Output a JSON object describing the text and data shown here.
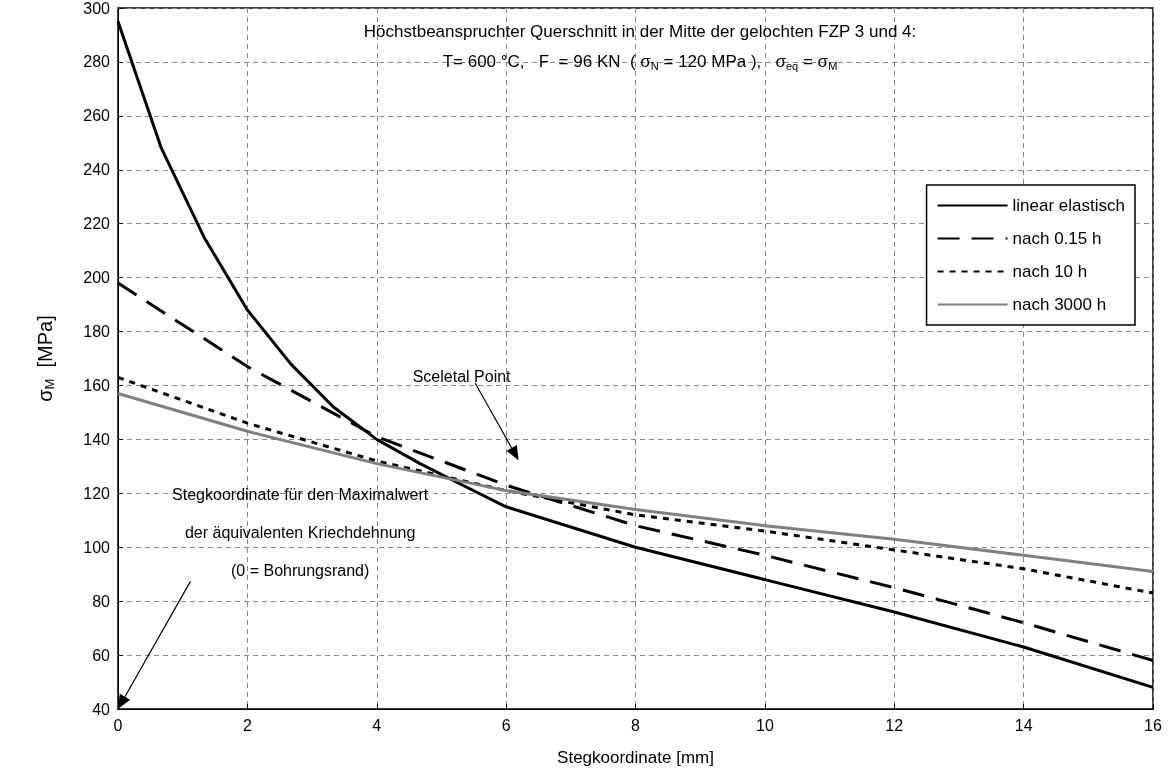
{
  "chart_data": {
    "type": "line",
    "title": "Höchstbeanspruchter Querschnitt in der Mitte der gelochten FZP 3 und 4:",
    "subtitle": "T= 600 °C,   F  = 96 KN  ( σ$_{N}$ = 120 MPa ),   σ$_{eq}$ = σ$_{M}$",
    "xlabel": "Stegkoordinate [mm]",
    "ylabel": "σ$_{M}$  [MPa]",
    "xlim": [
      0,
      16
    ],
    "xticks": [
      0,
      2,
      4,
      6,
      8,
      10,
      12,
      14,
      16
    ],
    "ylim": [
      40,
      300
    ],
    "yticks": [
      40,
      60,
      80,
      100,
      120,
      140,
      160,
      180,
      200,
      220,
      240,
      260,
      280,
      300
    ],
    "grid": true,
    "legend": "top right",
    "marker": "none",
    "series": [
      {
        "name": "linear elastisch",
        "color": "#000000",
        "line_style": "solid",
        "x": [
          0,
          0.67,
          1.33,
          2,
          2.67,
          3.33,
          4,
          4.67,
          5.33,
          6,
          8,
          10,
          12,
          14,
          16
        ],
        "values": [
          295,
          248,
          215,
          188,
          168,
          152,
          140,
          131,
          123,
          115,
          100,
          88,
          76,
          63,
          48
        ]
      },
      {
        "name": "nach 0.15 h",
        "color": "#000000",
        "line_style": "dashed",
        "x": [
          0,
          2,
          4,
          6,
          8,
          10,
          12,
          14,
          16
        ],
        "values": [
          198,
          167,
          141,
          123,
          108,
          97,
          85,
          72,
          58
        ]
      },
      {
        "name": "nach 10 h",
        "color": "#000000",
        "line_style": "dotted",
        "x": [
          0,
          2,
          4,
          6,
          8,
          10,
          12,
          14,
          16
        ],
        "values": [
          163,
          146,
          132,
          121,
          112,
          106,
          99,
          92,
          83
        ]
      },
      {
        "name": "nach 3000 h",
        "color": "#808080",
        "line_style": "solid",
        "x": [
          0,
          2,
          4,
          6,
          8,
          10,
          12,
          14,
          16
        ],
        "values": [
          157,
          143,
          131,
          121,
          114,
          108,
          103,
          97,
          91
        ]
      }
    ],
    "annotations": [
      "Sceletal Point",
      "Stegkoordinate für den Maximalwert\nder äquivalenten Kriechdehnung\n(0 = Bohrungsrand)"
    ]
  }
}
